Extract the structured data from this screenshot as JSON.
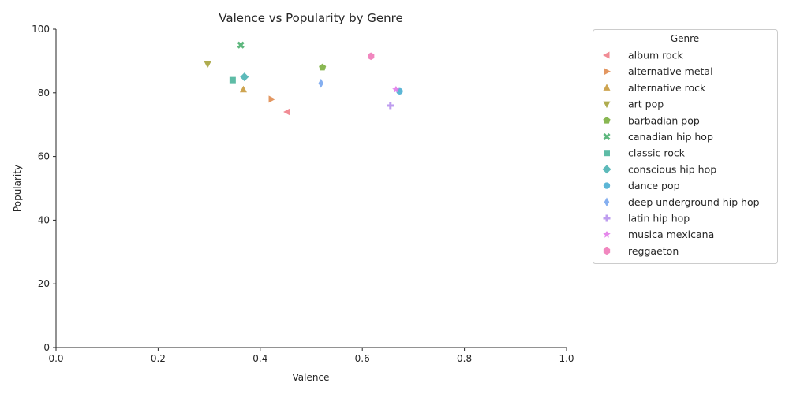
{
  "chart_data": {
    "type": "scatter",
    "title": "Valence vs Popularity by Genre",
    "xlabel": "Valence",
    "ylabel": "Popularity",
    "xlim": [
      0,
      1
    ],
    "ylim": [
      0,
      100
    ],
    "xticks": [
      "0.0",
      "0.2",
      "0.4",
      "0.6",
      "0.8",
      "1.0"
    ],
    "yticks": [
      "0",
      "20",
      "40",
      "60",
      "80",
      "100"
    ],
    "grid": false,
    "legend": {
      "title": "Genre",
      "placement": "outside-right"
    },
    "series": [
      {
        "name": "album rock",
        "marker": "triangle-left",
        "color": "#f07f8a",
        "points": [
          [
            0.453,
            74
          ]
        ]
      },
      {
        "name": "alternative metal",
        "marker": "triangle-right",
        "color": "#e08c50",
        "points": [
          [
            0.422,
            78
          ]
        ]
      },
      {
        "name": "alternative rock",
        "marker": "triangle-up",
        "color": "#c99b3e",
        "points": [
          [
            0.367,
            81
          ]
        ]
      },
      {
        "name": "art pop",
        "marker": "triangle-down",
        "color": "#a6a33c",
        "points": [
          [
            0.297,
            89
          ]
        ]
      },
      {
        "name": "barbadian pop",
        "marker": "pentagon",
        "color": "#7caf3f",
        "points": [
          [
            0.522,
            88
          ]
        ]
      },
      {
        "name": "canadian hip hop",
        "marker": "x",
        "color": "#4cb070",
        "points": [
          [
            0.362,
            95
          ]
        ]
      },
      {
        "name": "classic rock",
        "marker": "square",
        "color": "#4db59c",
        "points": [
          [
            0.346,
            84
          ]
        ]
      },
      {
        "name": "conscious hip hop",
        "marker": "diamond",
        "color": "#4bb3b3",
        "points": [
          [
            0.369,
            85
          ]
        ]
      },
      {
        "name": "dance pop",
        "marker": "circle",
        "color": "#4aaed2",
        "points": [
          [
            0.673,
            80.5
          ]
        ]
      },
      {
        "name": "deep underground hip hop",
        "marker": "thin-diamond",
        "color": "#78a6ee",
        "points": [
          [
            0.519,
            83
          ]
        ]
      },
      {
        "name": "latin hip hop",
        "marker": "plus",
        "color": "#b893ee",
        "points": [
          [
            0.655,
            76
          ]
        ]
      },
      {
        "name": "musica mexicana",
        "marker": "star",
        "color": "#e27be9",
        "points": [
          [
            0.666,
            81
          ]
        ]
      },
      {
        "name": "reggaeton",
        "marker": "hexagon",
        "color": "#f07ab8",
        "points": [
          [
            0.617,
            91.5
          ]
        ]
      }
    ]
  }
}
